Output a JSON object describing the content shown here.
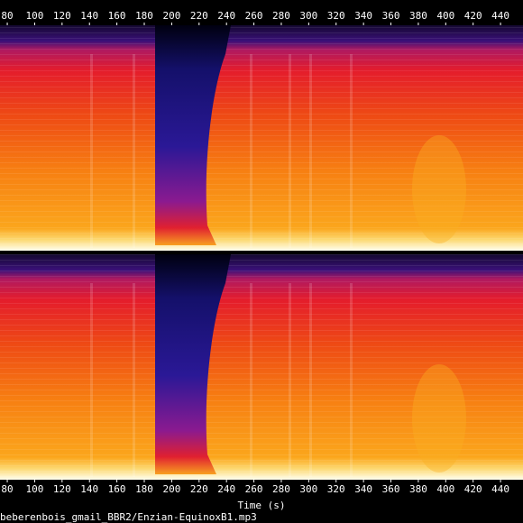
{
  "chart_data": {
    "type": "spectrogram",
    "xlabel": "Time (s)",
    "caption": "beberenbois_gmail_BBR2/Enzian-EquinoxB1.mp3",
    "xlim": [
      74.7,
      456.4
    ],
    "xticks": [
      80,
      100,
      120,
      140,
      160,
      180,
      200,
      220,
      240,
      260,
      280,
      300,
      320,
      340,
      360,
      380,
      400,
      420,
      440
    ]
  }
}
